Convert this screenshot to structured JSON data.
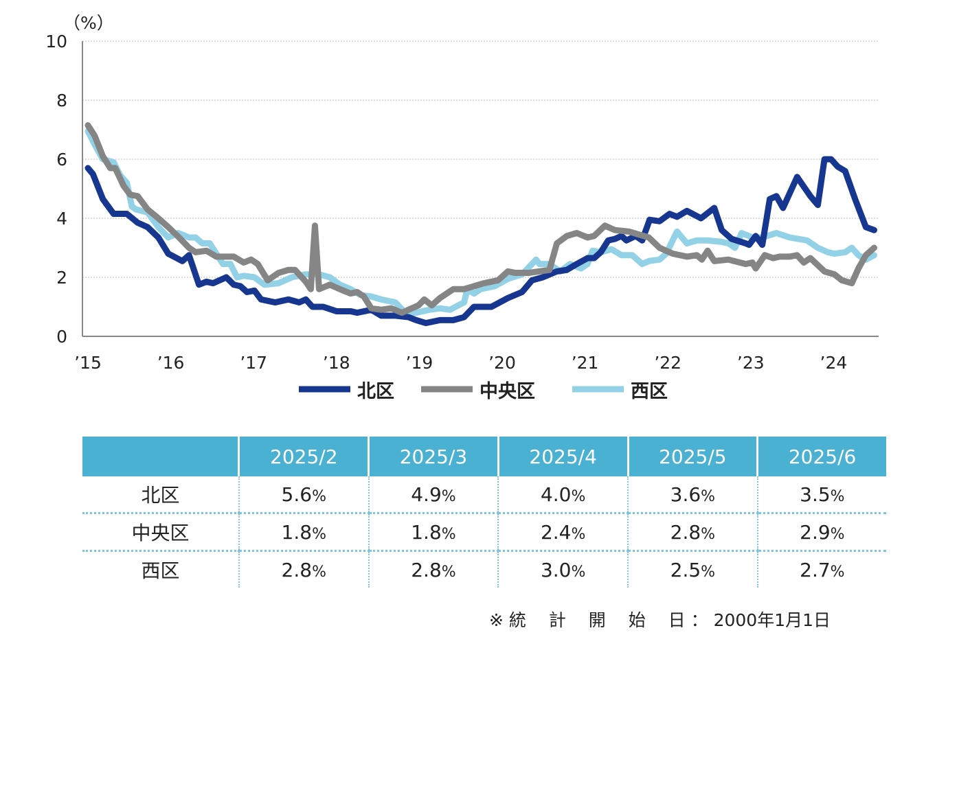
{
  "chart_data": {
    "type": "line",
    "unit_label": "（%）",
    "ylim": [
      0,
      10
    ],
    "yticks": [
      0,
      2,
      4,
      6,
      8,
      10
    ],
    "xlim": [
      2015,
      2024.6
    ],
    "xticks": [
      {
        "x": 2015,
        "label": "’15"
      },
      {
        "x": 2016,
        "label": "’16"
      },
      {
        "x": 2017,
        "label": "’17"
      },
      {
        "x": 2018,
        "label": "’18"
      },
      {
        "x": 2019,
        "label": "’19"
      },
      {
        "x": 2020,
        "label": "’20"
      },
      {
        "x": 2021,
        "label": "’21"
      },
      {
        "x": 2022,
        "label": "’22"
      },
      {
        "x": 2023,
        "label": "’23"
      },
      {
        "x": 2024,
        "label": "’24"
      }
    ],
    "grid": true,
    "legend_placement": "bottom",
    "series": [
      {
        "name": "北区",
        "color": "#17368f",
        "points": [
          [
            2015.0,
            5.7
          ],
          [
            2015.06,
            5.5
          ],
          [
            2015.18,
            4.65
          ],
          [
            2015.31,
            4.15
          ],
          [
            2015.47,
            4.15
          ],
          [
            2015.6,
            3.85
          ],
          [
            2015.72,
            3.7
          ],
          [
            2015.85,
            3.35
          ],
          [
            2015.97,
            2.8
          ],
          [
            2016.14,
            2.55
          ],
          [
            2016.22,
            2.75
          ],
          [
            2016.34,
            1.75
          ],
          [
            2016.43,
            1.85
          ],
          [
            2016.51,
            1.8
          ],
          [
            2016.67,
            2.0
          ],
          [
            2016.76,
            1.75
          ],
          [
            2016.84,
            1.7
          ],
          [
            2016.92,
            1.5
          ],
          [
            2017.01,
            1.55
          ],
          [
            2017.09,
            1.25
          ],
          [
            2017.26,
            1.15
          ],
          [
            2017.42,
            1.25
          ],
          [
            2017.55,
            1.15
          ],
          [
            2017.63,
            1.25
          ],
          [
            2017.71,
            1.0
          ],
          [
            2017.84,
            1.0
          ],
          [
            2018.0,
            0.85
          ],
          [
            2018.17,
            0.85
          ],
          [
            2018.25,
            0.8
          ],
          [
            2018.42,
            0.9
          ],
          [
            2018.54,
            0.7
          ],
          [
            2018.71,
            0.7
          ],
          [
            2018.87,
            0.65
          ],
          [
            2018.96,
            0.55
          ],
          [
            2019.08,
            0.45
          ],
          [
            2019.25,
            0.55
          ],
          [
            2019.41,
            0.55
          ],
          [
            2019.54,
            0.65
          ],
          [
            2019.66,
            1.0
          ],
          [
            2019.87,
            1.0
          ],
          [
            2020.07,
            1.3
          ],
          [
            2020.24,
            1.5
          ],
          [
            2020.36,
            1.9
          ],
          [
            2020.49,
            2.0
          ],
          [
            2020.66,
            2.2
          ],
          [
            2020.78,
            2.25
          ],
          [
            2020.9,
            2.45
          ],
          [
            2021.03,
            2.65
          ],
          [
            2021.11,
            2.65
          ],
          [
            2021.19,
            2.85
          ],
          [
            2021.28,
            3.25
          ],
          [
            2021.36,
            3.3
          ],
          [
            2021.44,
            3.4
          ],
          [
            2021.5,
            3.25
          ],
          [
            2021.61,
            3.4
          ],
          [
            2021.69,
            3.25
          ],
          [
            2021.78,
            3.95
          ],
          [
            2021.9,
            3.9
          ],
          [
            2022.02,
            4.15
          ],
          [
            2022.11,
            4.05
          ],
          [
            2022.23,
            4.25
          ],
          [
            2022.4,
            4.0
          ],
          [
            2022.56,
            4.35
          ],
          [
            2022.65,
            3.6
          ],
          [
            2022.77,
            3.3
          ],
          [
            2022.94,
            3.15
          ],
          [
            2022.98,
            3.1
          ],
          [
            2023.06,
            3.4
          ],
          [
            2023.14,
            3.1
          ],
          [
            2023.23,
            4.65
          ],
          [
            2023.31,
            4.75
          ],
          [
            2023.39,
            4.35
          ],
          [
            2023.56,
            5.4
          ],
          [
            2023.72,
            4.75
          ],
          [
            2023.81,
            4.45
          ],
          [
            2023.89,
            6.0
          ],
          [
            2023.97,
            6.0
          ],
          [
            2024.05,
            5.75
          ],
          [
            2024.14,
            5.6
          ],
          [
            2024.26,
            4.65
          ],
          [
            2024.39,
            3.7
          ],
          [
            2024.49,
            3.6
          ]
        ]
      },
      {
        "name": "中央区",
        "color": "#858585",
        "points": [
          [
            2015.0,
            7.15
          ],
          [
            2015.08,
            6.8
          ],
          [
            2015.18,
            6.1
          ],
          [
            2015.27,
            5.7
          ],
          [
            2015.33,
            5.7
          ],
          [
            2015.43,
            5.1
          ],
          [
            2015.51,
            4.8
          ],
          [
            2015.6,
            4.75
          ],
          [
            2015.72,
            4.3
          ],
          [
            2015.85,
            4.0
          ],
          [
            2015.97,
            3.7
          ],
          [
            2016.1,
            3.35
          ],
          [
            2016.22,
            3.0
          ],
          [
            2016.3,
            2.85
          ],
          [
            2016.43,
            2.9
          ],
          [
            2016.55,
            2.7
          ],
          [
            2016.76,
            2.7
          ],
          [
            2016.88,
            2.5
          ],
          [
            2016.97,
            2.6
          ],
          [
            2017.05,
            2.45
          ],
          [
            2017.17,
            1.9
          ],
          [
            2017.3,
            2.15
          ],
          [
            2017.42,
            2.25
          ],
          [
            2017.5,
            2.25
          ],
          [
            2017.63,
            1.85
          ],
          [
            2017.69,
            1.6
          ],
          [
            2017.74,
            3.75
          ],
          [
            2017.79,
            1.6
          ],
          [
            2017.92,
            1.75
          ],
          [
            2018.04,
            1.6
          ],
          [
            2018.17,
            1.45
          ],
          [
            2018.25,
            1.5
          ],
          [
            2018.33,
            1.35
          ],
          [
            2018.42,
            0.95
          ],
          [
            2018.54,
            0.9
          ],
          [
            2018.66,
            0.95
          ],
          [
            2018.79,
            0.8
          ],
          [
            2018.91,
            0.95
          ],
          [
            2018.99,
            1.05
          ],
          [
            2019.06,
            1.25
          ],
          [
            2019.15,
            1.05
          ],
          [
            2019.25,
            1.3
          ],
          [
            2019.41,
            1.6
          ],
          [
            2019.54,
            1.6
          ],
          [
            2019.66,
            1.7
          ],
          [
            2019.78,
            1.8
          ],
          [
            2019.95,
            1.9
          ],
          [
            2020.07,
            2.2
          ],
          [
            2020.16,
            2.15
          ],
          [
            2020.32,
            2.15
          ],
          [
            2020.57,
            2.25
          ],
          [
            2020.66,
            3.15
          ],
          [
            2020.78,
            3.4
          ],
          [
            2020.9,
            3.5
          ],
          [
            2021.03,
            3.35
          ],
          [
            2021.11,
            3.4
          ],
          [
            2021.24,
            3.75
          ],
          [
            2021.36,
            3.6
          ],
          [
            2021.53,
            3.55
          ],
          [
            2021.65,
            3.45
          ],
          [
            2021.77,
            3.35
          ],
          [
            2021.9,
            3.0
          ],
          [
            2022.06,
            2.8
          ],
          [
            2022.23,
            2.7
          ],
          [
            2022.35,
            2.75
          ],
          [
            2022.41,
            2.6
          ],
          [
            2022.48,
            2.9
          ],
          [
            2022.56,
            2.55
          ],
          [
            2022.73,
            2.6
          ],
          [
            2022.94,
            2.45
          ],
          [
            2023.02,
            2.5
          ],
          [
            2023.06,
            2.3
          ],
          [
            2023.17,
            2.75
          ],
          [
            2023.27,
            2.65
          ],
          [
            2023.35,
            2.7
          ],
          [
            2023.47,
            2.7
          ],
          [
            2023.56,
            2.75
          ],
          [
            2023.64,
            2.5
          ],
          [
            2023.72,
            2.65
          ],
          [
            2023.89,
            2.2
          ],
          [
            2024.01,
            2.1
          ],
          [
            2024.1,
            1.9
          ],
          [
            2024.22,
            1.8
          ],
          [
            2024.3,
            2.3
          ],
          [
            2024.39,
            2.75
          ],
          [
            2024.49,
            3.0
          ]
        ]
      },
      {
        "name": "西区",
        "color": "#93d2e6",
        "points": [
          [
            2015.0,
            6.95
          ],
          [
            2015.1,
            6.4
          ],
          [
            2015.18,
            6.0
          ],
          [
            2015.31,
            5.9
          ],
          [
            2015.39,
            5.45
          ],
          [
            2015.47,
            5.2
          ],
          [
            2015.53,
            4.4
          ],
          [
            2015.58,
            4.3
          ],
          [
            2015.72,
            4.2
          ],
          [
            2015.85,
            3.7
          ],
          [
            2015.97,
            3.35
          ],
          [
            2016.09,
            3.5
          ],
          [
            2016.22,
            3.35
          ],
          [
            2016.3,
            3.35
          ],
          [
            2016.38,
            3.15
          ],
          [
            2016.47,
            3.15
          ],
          [
            2016.55,
            2.8
          ],
          [
            2016.63,
            2.45
          ],
          [
            2016.72,
            2.45
          ],
          [
            2016.8,
            2.0
          ],
          [
            2016.88,
            2.05
          ],
          [
            2017.01,
            2.0
          ],
          [
            2017.13,
            1.75
          ],
          [
            2017.3,
            1.8
          ],
          [
            2017.46,
            2.0
          ],
          [
            2017.63,
            2.1
          ],
          [
            2017.79,
            2.1
          ],
          [
            2017.92,
            2.0
          ],
          [
            2018.04,
            1.75
          ],
          [
            2018.17,
            1.6
          ],
          [
            2018.29,
            1.4
          ],
          [
            2018.42,
            1.35
          ],
          [
            2018.54,
            1.25
          ],
          [
            2018.71,
            1.15
          ],
          [
            2018.83,
            0.8
          ],
          [
            2018.96,
            0.8
          ],
          [
            2019.12,
            0.9
          ],
          [
            2019.25,
            0.95
          ],
          [
            2019.37,
            0.9
          ],
          [
            2019.54,
            1.15
          ],
          [
            2019.58,
            1.6
          ],
          [
            2019.66,
            1.45
          ],
          [
            2019.74,
            1.6
          ],
          [
            2019.91,
            1.7
          ],
          [
            2020.07,
            1.95
          ],
          [
            2020.24,
            2.1
          ],
          [
            2020.41,
            2.6
          ],
          [
            2020.45,
            2.45
          ],
          [
            2020.57,
            2.45
          ],
          [
            2020.7,
            2.2
          ],
          [
            2020.82,
            2.45
          ],
          [
            2020.95,
            2.3
          ],
          [
            2021.03,
            2.45
          ],
          [
            2021.09,
            2.9
          ],
          [
            2021.19,
            2.85
          ],
          [
            2021.32,
            2.95
          ],
          [
            2021.44,
            2.75
          ],
          [
            2021.57,
            2.75
          ],
          [
            2021.69,
            2.45
          ],
          [
            2021.77,
            2.55
          ],
          [
            2021.9,
            2.6
          ],
          [
            2021.98,
            2.8
          ],
          [
            2022.11,
            3.55
          ],
          [
            2022.23,
            3.15
          ],
          [
            2022.35,
            3.25
          ],
          [
            2022.48,
            3.25
          ],
          [
            2022.65,
            3.2
          ],
          [
            2022.73,
            3.15
          ],
          [
            2022.81,
            3.0
          ],
          [
            2022.89,
            3.5
          ],
          [
            2023.02,
            3.35
          ],
          [
            2023.14,
            3.35
          ],
          [
            2023.31,
            3.5
          ],
          [
            2023.47,
            3.35
          ],
          [
            2023.68,
            3.25
          ],
          [
            2023.81,
            3.0
          ],
          [
            2023.93,
            2.85
          ],
          [
            2024.01,
            2.8
          ],
          [
            2024.14,
            2.85
          ],
          [
            2024.22,
            3.0
          ],
          [
            2024.3,
            2.75
          ],
          [
            2024.39,
            2.6
          ],
          [
            2024.49,
            2.75
          ]
        ]
      }
    ]
  },
  "table": {
    "headers": [
      "",
      "2025/2",
      "2025/3",
      "2025/4",
      "2025/5",
      "2025/6"
    ],
    "rows": [
      {
        "label": "北区",
        "values": [
          "5.6",
          "4.9",
          "4.0",
          "3.6",
          "3.5"
        ]
      },
      {
        "label": "中央区",
        "values": [
          "1.8",
          "1.8",
          "2.4",
          "2.8",
          "2.9"
        ]
      },
      {
        "label": "西区",
        "values": [
          "2.8",
          "2.8",
          "3.0",
          "2.5",
          "2.7"
        ]
      }
    ],
    "unit": "%",
    "header_color": "#4bb1d3"
  },
  "note": "※ 統　 計　 開　 始　 日 ： 2000年1月1日"
}
